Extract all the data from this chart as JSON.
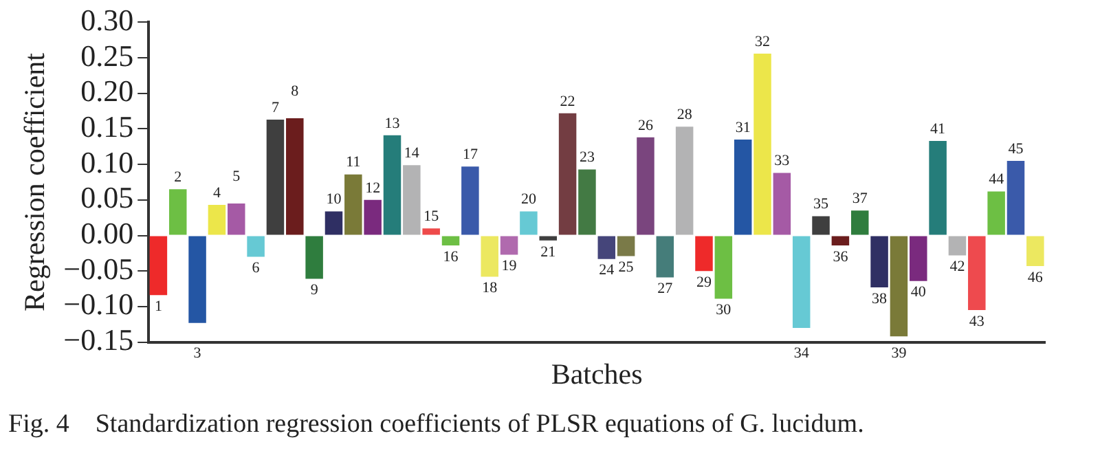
{
  "chart_data": {
    "type": "bar",
    "xlabel": "Batches",
    "ylabel": "Regression coefficient",
    "categories": [
      "1",
      "2",
      "3",
      "4",
      "5",
      "6",
      "7",
      "8",
      "9",
      "10",
      "11",
      "12",
      "13",
      "14",
      "15",
      "16",
      "17",
      "18",
      "19",
      "20",
      "21",
      "22",
      "23",
      "24",
      "25",
      "26",
      "27",
      "28",
      "29",
      "30",
      "31",
      "32",
      "33",
      "34",
      "35",
      "36",
      "37",
      "38",
      "39",
      "40",
      "41",
      "42",
      "43",
      "44",
      "45",
      "46"
    ],
    "values": [
      -0.084,
      0.065,
      -0.123,
      0.043,
      0.045,
      -0.03,
      0.163,
      0.165,
      -0.061,
      0.034,
      0.086,
      0.05,
      0.141,
      0.099,
      0.01,
      -0.014,
      0.097,
      -0.058,
      -0.027,
      0.034,
      -0.007,
      0.172,
      0.093,
      -0.033,
      -0.029,
      0.138,
      -0.059,
      0.153,
      -0.05,
      -0.089,
      0.135,
      0.256,
      0.088,
      -0.13,
      0.027,
      -0.014,
      0.035,
      -0.073,
      -0.142,
      -0.064,
      0.133,
      -0.028,
      -0.105,
      0.062,
      0.105,
      -0.043
    ],
    "colors": [
      "#ee2a2a",
      "#6dbf44",
      "#2456a4",
      "#ece64a",
      "#a55aa5",
      "#66c9d4",
      "#3f3f3f",
      "#6b1d1d",
      "#2f7d3e",
      "#2f2f63",
      "#7a7a38",
      "#7a2a7e",
      "#257d7a",
      "#b3b3b4",
      "#ee4a4a",
      "#6dbf44",
      "#3a5aaa",
      "#ece860",
      "#b06aae",
      "#66c9d4",
      "#3f3f3f",
      "#733d42",
      "#437a44",
      "#45457a",
      "#7a7a48",
      "#7a457e",
      "#457d7a",
      "#b3b3b4",
      "#ee2a2a",
      "#6dbf44",
      "#2456a4",
      "#ece64a",
      "#a55aa5",
      "#66c9d4",
      "#3f3f3f",
      "#6b1d1d",
      "#2f7d3e",
      "#2f2f63",
      "#7a7a38",
      "#7a2a7e",
      "#257d7a",
      "#b3b3b4",
      "#ee4a4e",
      "#6dbf44",
      "#3a5aaa",
      "#ece860"
    ],
    "ylim": [
      -0.15,
      0.3
    ],
    "yticks": [
      {
        "value": -0.15,
        "label": "−0.15"
      },
      {
        "value": -0.1,
        "label": "−0.10"
      },
      {
        "value": -0.05,
        "label": "−0.05"
      },
      {
        "value": 0,
        "label": "0.00"
      },
      {
        "value": 0.05,
        "label": "0.05"
      },
      {
        "value": 0.1,
        "label": "0.10"
      },
      {
        "value": 0.15,
        "label": "0.15"
      },
      {
        "value": 0.2,
        "label": "0.20"
      },
      {
        "value": 0.25,
        "label": "0.25"
      },
      {
        "value": 0.3,
        "label": "0.30"
      }
    ],
    "grid": false,
    "legend": false,
    "annotations": [
      "Fig. 4    Standardization regression coefficients of PLSR equations of G. lucidum."
    ]
  }
}
